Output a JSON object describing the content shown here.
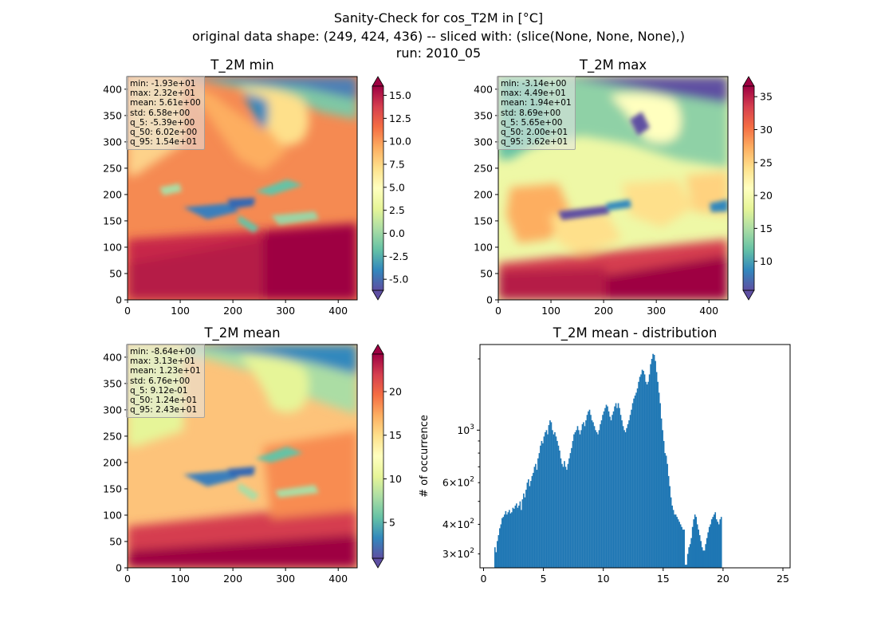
{
  "figure": {
    "title_line1": "Sanity-Check for cos_T2M in [°C]",
    "title_line2": "original data shape: (249, 424, 436) -- sliced with: (slice(None, None, None),)",
    "title_line3": "run: 2010_05"
  },
  "colormap": "Spectral_r",
  "colormap_stops": [
    "#5e4fa2",
    "#3288bd",
    "#66c2a5",
    "#abdda4",
    "#e6f598",
    "#ffffbf",
    "#fee08b",
    "#fdae61",
    "#f46d43",
    "#d53e4f",
    "#9e0142"
  ],
  "chart_data": [
    {
      "type": "heatmap",
      "title": "T_2M min",
      "xlim": [
        0,
        436
      ],
      "ylim": [
        0,
        424
      ],
      "xticks": [
        "0",
        "100",
        "200",
        "300",
        "400"
      ],
      "yticks": [
        "0",
        "50",
        "100",
        "150",
        "200",
        "250",
        "300",
        "350",
        "400"
      ],
      "colorbar": {
        "range": [
          -6.2,
          16.0
        ],
        "extend": "both",
        "ticks": [
          "-5.0",
          "-2.5",
          "0.0",
          "2.5",
          "5.0",
          "7.5",
          "10.0",
          "12.5",
          "15.0"
        ]
      },
      "stats": [
        "min: -1.93e+01",
        "max: 2.32e+01",
        "mean: 5.61e+00",
        "std: 6.58e+00",
        "q_5: -5.39e+00",
        "q_50: 6.02e+00",
        "q_95: 1.54e+01"
      ]
    },
    {
      "type": "heatmap",
      "title": "T_2M max",
      "xlim": [
        0,
        436
      ],
      "ylim": [
        0,
        424
      ],
      "xticks": [
        "0",
        "100",
        "200",
        "300",
        "400"
      ],
      "yticks": [
        "0",
        "50",
        "100",
        "150",
        "200",
        "250",
        "300",
        "350",
        "400"
      ],
      "colorbar": {
        "range": [
          5.6,
          36.6
        ],
        "extend": "both",
        "ticks": [
          "10",
          "15",
          "20",
          "25",
          "30",
          "35"
        ]
      },
      "stats": [
        "min: -3.14e+00",
        "max: 4.49e+01",
        "mean: 1.94e+01",
        "std: 8.69e+00",
        "q_5: 5.65e+00",
        "q_50: 2.00e+01",
        "q_95: 3.62e+01"
      ]
    },
    {
      "type": "heatmap",
      "title": "T_2M mean",
      "xlim": [
        0,
        436
      ],
      "ylim": [
        0,
        424
      ],
      "xticks": [
        "0",
        "100",
        "200",
        "300",
        "400"
      ],
      "yticks": [
        "0",
        "50",
        "100",
        "150",
        "200",
        "250",
        "300",
        "350",
        "400"
      ],
      "colorbar": {
        "range": [
          0.9,
          24.3
        ],
        "extend": "both",
        "ticks": [
          "5",
          "10",
          "15",
          "20"
        ]
      },
      "stats": [
        "min: -8.64e+00",
        "max: 3.13e+01",
        "mean: 1.23e+01",
        "std: 6.76e+00",
        "q_5: 9.12e-01",
        "q_50: 1.24e+01",
        "q_95: 2.43e+01"
      ]
    },
    {
      "type": "bar",
      "title": "T_2M mean - distribution",
      "ylabel": "# of occurrence",
      "xlabel": "",
      "xlim": [
        -0.3,
        25.6
      ],
      "ylim": [
        262,
        2300
      ],
      "yscale": "log",
      "xticks": [
        0,
        5,
        10,
        15,
        20,
        25
      ],
      "yticks_major": [
        {
          "value": 1000,
          "base": "10",
          "exp": "3"
        }
      ],
      "yticks_minor": [
        {
          "value": 300,
          "mant": "3",
          "base": "10",
          "exp": "2"
        },
        {
          "value": 400,
          "mant": "4",
          "base": "10",
          "exp": "2"
        },
        {
          "value": 600,
          "mant": "6",
          "base": "10",
          "exp": "2"
        }
      ],
      "bar_color": "#1f77b4",
      "bins_start": 0.9,
      "bin_width": 0.1,
      "values": [
        320,
        305,
        340,
        360,
        385,
        400,
        425,
        430,
        440,
        455,
        440,
        450,
        460,
        445,
        450,
        470,
        465,
        480,
        490,
        470,
        480,
        500,
        460,
        510,
        540,
        520,
        560,
        600,
        620,
        580,
        610,
        640,
        660,
        700,
        720,
        680,
        760,
        800,
        860,
        900,
        880,
        940,
        980,
        1000,
        960,
        1050,
        1100,
        1080,
        1000,
        960,
        980,
        940,
        900,
        860,
        820,
        760,
        720,
        700,
        740,
        700,
        680,
        720,
        760,
        800,
        840,
        900,
        960,
        980,
        1000,
        1040,
        1000,
        960,
        1000,
        1060,
        1080,
        1040,
        1100,
        1160,
        1200,
        1220,
        1160,
        1100,
        1080,
        1040,
        1000,
        980,
        960,
        1000,
        1060,
        1100,
        1160,
        1200,
        1240,
        1280,
        1260,
        1200,
        1140,
        1100,
        1160,
        1200,
        1260,
        1300,
        1240,
        1300,
        1240,
        1160,
        1100,
        1040,
        1000,
        980,
        1020,
        1060,
        1100,
        1160,
        1220,
        1300,
        1360,
        1400,
        1440,
        1500,
        1600,
        1680,
        1720,
        1800,
        1780,
        1720,
        1600,
        1560,
        1600,
        1720,
        1900,
        2000,
        2100,
        2080,
        1960,
        1760,
        1600,
        1440,
        1300,
        1120,
        1000,
        900,
        800,
        780,
        720,
        640,
        580,
        520,
        480,
        460,
        440,
        440,
        430,
        420,
        410,
        400,
        390,
        380,
        380,
        270,
        270,
        300,
        320,
        330,
        350,
        390,
        420,
        440,
        430,
        400,
        380,
        360,
        340,
        320,
        310,
        310,
        330,
        350,
        370,
        390,
        400,
        420,
        430,
        440,
        450,
        420,
        410,
        400,
        420,
        430
      ]
    }
  ]
}
